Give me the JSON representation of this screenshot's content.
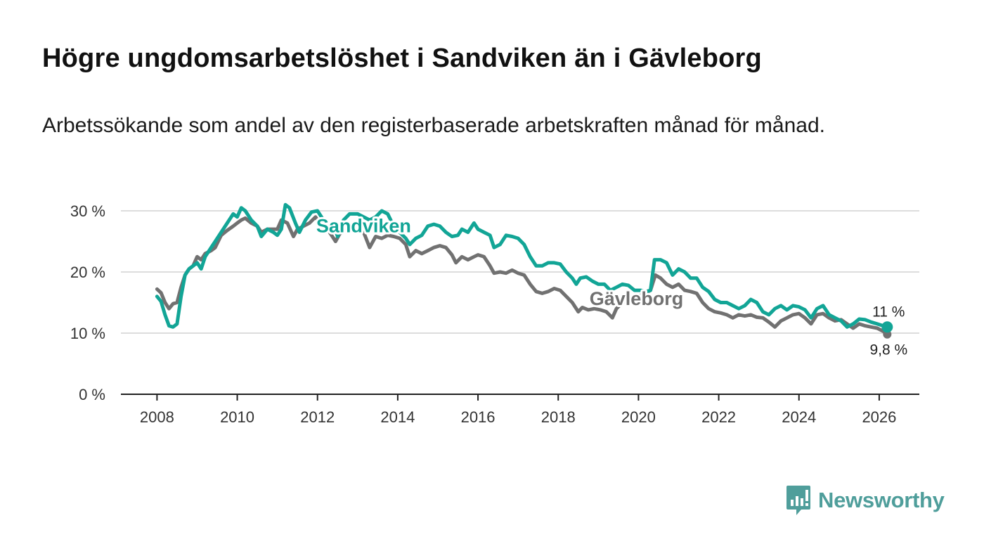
{
  "title": "Högre ungdomsarbetslöshet i Sandviken än i Gävleborg",
  "subtitle": "Arbetssökande som andel av den registerbaserade arbetskraften månad för månad.",
  "logo_text": "Newsworthy",
  "colors": {
    "sandviken": "#12a596",
    "gavleborg": "#717171",
    "grid": "#dddddd",
    "axis": "#222222",
    "logo": "#4f9e9b"
  },
  "chart_data": {
    "type": "line",
    "title": "Högre ungdomsarbetslöshet i Sandviken än i Gävleborg",
    "xlabel": "",
    "ylabel": "",
    "xlim": [
      2007.1,
      2027.0
    ],
    "ylim": [
      0,
      30
    ],
    "y_ticks": [
      0,
      10,
      20,
      30
    ],
    "y_tick_labels": [
      "0 %",
      "10 %",
      "20 %",
      "30 %"
    ],
    "x_ticks": [
      2008,
      2010,
      2012,
      2014,
      2016,
      2018,
      2020,
      2022,
      2024,
      2026
    ],
    "x_tick_labels": [
      "2008",
      "2010",
      "2012",
      "2014",
      "2016",
      "2018",
      "2020",
      "2022",
      "2024",
      "2026"
    ],
    "series": [
      {
        "name": "Gävleborg",
        "label": "Gävleborg",
        "end_label": "9,8 %",
        "points": [
          [
            2008.0,
            17.2
          ],
          [
            2008.1,
            16.6
          ],
          [
            2008.2,
            15.0
          ],
          [
            2008.3,
            14.0
          ],
          [
            2008.4,
            14.8
          ],
          [
            2008.5,
            15.0
          ],
          [
            2008.6,
            17.5
          ],
          [
            2008.7,
            19.5
          ],
          [
            2008.8,
            20.5
          ],
          [
            2008.9,
            21.0
          ],
          [
            2009.0,
            22.5
          ],
          [
            2009.1,
            22.0
          ],
          [
            2009.2,
            23.0
          ],
          [
            2009.35,
            23.5
          ],
          [
            2009.45,
            24.0
          ],
          [
            2009.6,
            26.0
          ],
          [
            2009.75,
            26.8
          ],
          [
            2009.9,
            27.5
          ],
          [
            2010.0,
            28.0
          ],
          [
            2010.1,
            28.5
          ],
          [
            2010.2,
            28.8
          ],
          [
            2010.35,
            28.0
          ],
          [
            2010.5,
            27.5
          ],
          [
            2010.6,
            26.5
          ],
          [
            2010.75,
            27.0
          ],
          [
            2010.9,
            27.0
          ],
          [
            2011.0,
            27.0
          ],
          [
            2011.1,
            28.5
          ],
          [
            2011.25,
            28.0
          ],
          [
            2011.4,
            25.8
          ],
          [
            2011.5,
            27.0
          ],
          [
            2011.65,
            27.5
          ],
          [
            2011.8,
            28.0
          ],
          [
            2011.95,
            29.0
          ],
          [
            2012.1,
            27.5
          ],
          [
            2012.25,
            27.0
          ],
          [
            2012.35,
            26.0
          ],
          [
            2012.45,
            25.0
          ],
          [
            2012.55,
            26.2
          ],
          [
            2012.7,
            27.0
          ],
          [
            2012.85,
            27.5
          ],
          [
            2013.0,
            27.0
          ],
          [
            2013.15,
            26.5
          ],
          [
            2013.3,
            24.0
          ],
          [
            2013.45,
            25.8
          ],
          [
            2013.6,
            25.5
          ],
          [
            2013.75,
            26.0
          ],
          [
            2013.9,
            25.8
          ],
          [
            2014.05,
            25.5
          ],
          [
            2014.2,
            24.5
          ],
          [
            2014.3,
            22.5
          ],
          [
            2014.45,
            23.5
          ],
          [
            2014.6,
            23.0
          ],
          [
            2014.75,
            23.5
          ],
          [
            2014.9,
            24.0
          ],
          [
            2015.05,
            24.3
          ],
          [
            2015.2,
            24.0
          ],
          [
            2015.35,
            22.8
          ],
          [
            2015.45,
            21.5
          ],
          [
            2015.6,
            22.5
          ],
          [
            2015.75,
            22.0
          ],
          [
            2015.9,
            22.5
          ],
          [
            2016.0,
            22.8
          ],
          [
            2016.15,
            22.5
          ],
          [
            2016.3,
            21.0
          ],
          [
            2016.4,
            19.8
          ],
          [
            2016.55,
            20.0
          ],
          [
            2016.7,
            19.8
          ],
          [
            2016.85,
            20.3
          ],
          [
            2017.0,
            19.8
          ],
          [
            2017.15,
            19.5
          ],
          [
            2017.3,
            18.0
          ],
          [
            2017.45,
            16.8
          ],
          [
            2017.6,
            16.5
          ],
          [
            2017.75,
            16.8
          ],
          [
            2017.9,
            17.3
          ],
          [
            2018.05,
            17.0
          ],
          [
            2018.2,
            16.0
          ],
          [
            2018.35,
            15.0
          ],
          [
            2018.5,
            13.5
          ],
          [
            2018.6,
            14.2
          ],
          [
            2018.75,
            13.8
          ],
          [
            2018.9,
            14.0
          ],
          [
            2019.05,
            13.8
          ],
          [
            2019.2,
            13.5
          ],
          [
            2019.35,
            12.5
          ],
          [
            2019.45,
            14.0
          ],
          [
            2019.6,
            15.0
          ],
          [
            2019.75,
            15.5
          ],
          [
            2019.9,
            16.0
          ],
          [
            2020.0,
            16.0
          ],
          [
            2020.15,
            16.5
          ],
          [
            2020.3,
            17.0
          ],
          [
            2020.42,
            19.5
          ],
          [
            2020.55,
            19.0
          ],
          [
            2020.7,
            18.0
          ],
          [
            2020.85,
            17.5
          ],
          [
            2021.0,
            18.0
          ],
          [
            2021.15,
            17.0
          ],
          [
            2021.3,
            16.8
          ],
          [
            2021.45,
            16.5
          ],
          [
            2021.6,
            15.0
          ],
          [
            2021.75,
            14.0
          ],
          [
            2021.9,
            13.5
          ],
          [
            2022.05,
            13.3
          ],
          [
            2022.2,
            13.0
          ],
          [
            2022.35,
            12.5
          ],
          [
            2022.5,
            13.0
          ],
          [
            2022.65,
            12.8
          ],
          [
            2022.8,
            13.0
          ],
          [
            2022.95,
            12.6
          ],
          [
            2023.1,
            12.5
          ],
          [
            2023.25,
            11.8
          ],
          [
            2023.4,
            11.0
          ],
          [
            2023.55,
            12.0
          ],
          [
            2023.7,
            12.5
          ],
          [
            2023.85,
            13.0
          ],
          [
            2024.0,
            13.2
          ],
          [
            2024.15,
            12.5
          ],
          [
            2024.3,
            11.5
          ],
          [
            2024.45,
            13.0
          ],
          [
            2024.6,
            13.2
          ],
          [
            2024.75,
            12.5
          ],
          [
            2024.9,
            12.0
          ],
          [
            2025.05,
            12.2
          ],
          [
            2025.2,
            11.5
          ],
          [
            2025.35,
            10.8
          ],
          [
            2025.5,
            11.5
          ],
          [
            2025.65,
            11.2
          ],
          [
            2025.8,
            11.0
          ],
          [
            2025.95,
            10.8
          ],
          [
            2026.1,
            10.3
          ],
          [
            2026.2,
            9.8
          ]
        ]
      },
      {
        "name": "Sandviken",
        "label": "Sandviken",
        "end_label": "11 %",
        "points": [
          [
            2008.0,
            16.0
          ],
          [
            2008.1,
            15.2
          ],
          [
            2008.2,
            13.0
          ],
          [
            2008.3,
            11.2
          ],
          [
            2008.4,
            11.0
          ],
          [
            2008.5,
            11.5
          ],
          [
            2008.6,
            16.0
          ],
          [
            2008.7,
            19.5
          ],
          [
            2008.8,
            20.5
          ],
          [
            2008.9,
            21.0
          ],
          [
            2009.0,
            21.5
          ],
          [
            2009.1,
            20.5
          ],
          [
            2009.2,
            22.5
          ],
          [
            2009.35,
            24.0
          ],
          [
            2009.45,
            25.0
          ],
          [
            2009.6,
            26.5
          ],
          [
            2009.75,
            28.0
          ],
          [
            2009.9,
            29.5
          ],
          [
            2010.0,
            29.0
          ],
          [
            2010.1,
            30.5
          ],
          [
            2010.2,
            30.0
          ],
          [
            2010.35,
            28.5
          ],
          [
            2010.5,
            27.5
          ],
          [
            2010.6,
            25.8
          ],
          [
            2010.75,
            27.0
          ],
          [
            2010.9,
            26.5
          ],
          [
            2011.0,
            26.0
          ],
          [
            2011.1,
            27.0
          ],
          [
            2011.2,
            31.0
          ],
          [
            2011.3,
            30.5
          ],
          [
            2011.45,
            28.0
          ],
          [
            2011.55,
            26.5
          ],
          [
            2011.7,
            28.5
          ],
          [
            2011.85,
            29.8
          ],
          [
            2012.0,
            30.0
          ],
          [
            2012.1,
            29.0
          ],
          [
            2012.25,
            27.5
          ],
          [
            2012.4,
            28.0
          ],
          [
            2012.5,
            25.8
          ],
          [
            2012.65,
            28.5
          ],
          [
            2012.8,
            29.5
          ],
          [
            2013.0,
            29.5
          ],
          [
            2013.15,
            29.0
          ],
          [
            2013.3,
            28.5
          ],
          [
            2013.45,
            29.0
          ],
          [
            2013.6,
            30.0
          ],
          [
            2013.75,
            29.5
          ],
          [
            2013.9,
            27.5
          ],
          [
            2014.05,
            26.5
          ],
          [
            2014.2,
            25.5
          ],
          [
            2014.3,
            24.5
          ],
          [
            2014.45,
            25.5
          ],
          [
            2014.6,
            26.0
          ],
          [
            2014.75,
            27.5
          ],
          [
            2014.9,
            27.8
          ],
          [
            2015.05,
            27.5
          ],
          [
            2015.2,
            26.5
          ],
          [
            2015.35,
            25.8
          ],
          [
            2015.5,
            26.0
          ],
          [
            2015.6,
            27.0
          ],
          [
            2015.75,
            26.5
          ],
          [
            2015.9,
            28.0
          ],
          [
            2016.0,
            27.0
          ],
          [
            2016.15,
            26.5
          ],
          [
            2016.3,
            26.0
          ],
          [
            2016.4,
            24.0
          ],
          [
            2016.55,
            24.5
          ],
          [
            2016.7,
            26.0
          ],
          [
            2016.85,
            25.8
          ],
          [
            2017.0,
            25.5
          ],
          [
            2017.15,
            24.5
          ],
          [
            2017.3,
            22.5
          ],
          [
            2017.45,
            21.0
          ],
          [
            2017.6,
            21.0
          ],
          [
            2017.75,
            21.5
          ],
          [
            2017.9,
            21.5
          ],
          [
            2018.05,
            21.3
          ],
          [
            2018.2,
            20.0
          ],
          [
            2018.35,
            19.0
          ],
          [
            2018.45,
            18.0
          ],
          [
            2018.55,
            19.0
          ],
          [
            2018.7,
            19.2
          ],
          [
            2018.85,
            18.5
          ],
          [
            2019.0,
            18.0
          ],
          [
            2019.15,
            18.0
          ],
          [
            2019.3,
            17.0
          ],
          [
            2019.45,
            17.5
          ],
          [
            2019.6,
            18.0
          ],
          [
            2019.75,
            17.8
          ],
          [
            2019.9,
            17.0
          ],
          [
            2020.05,
            17.0
          ],
          [
            2020.2,
            16.8
          ],
          [
            2020.3,
            17.0
          ],
          [
            2020.4,
            22.0
          ],
          [
            2020.55,
            22.0
          ],
          [
            2020.7,
            21.5
          ],
          [
            2020.85,
            19.5
          ],
          [
            2021.0,
            20.5
          ],
          [
            2021.15,
            20.0
          ],
          [
            2021.3,
            19.0
          ],
          [
            2021.45,
            19.0
          ],
          [
            2021.6,
            17.5
          ],
          [
            2021.75,
            16.8
          ],
          [
            2021.9,
            15.5
          ],
          [
            2022.05,
            15.0
          ],
          [
            2022.2,
            15.0
          ],
          [
            2022.35,
            14.5
          ],
          [
            2022.5,
            14.0
          ],
          [
            2022.65,
            14.5
          ],
          [
            2022.8,
            15.5
          ],
          [
            2022.95,
            15.0
          ],
          [
            2023.1,
            13.5
          ],
          [
            2023.25,
            13.0
          ],
          [
            2023.4,
            14.0
          ],
          [
            2023.55,
            14.5
          ],
          [
            2023.7,
            13.8
          ],
          [
            2023.85,
            14.5
          ],
          [
            2024.0,
            14.3
          ],
          [
            2024.15,
            13.8
          ],
          [
            2024.3,
            12.5
          ],
          [
            2024.45,
            14.0
          ],
          [
            2024.6,
            14.5
          ],
          [
            2024.75,
            13.0
          ],
          [
            2024.9,
            12.5
          ],
          [
            2025.05,
            12.0
          ],
          [
            2025.2,
            11.0
          ],
          [
            2025.35,
            11.5
          ],
          [
            2025.5,
            12.3
          ],
          [
            2025.65,
            12.2
          ],
          [
            2025.8,
            11.8
          ],
          [
            2025.95,
            11.5
          ],
          [
            2026.1,
            11.2
          ],
          [
            2026.2,
            11.0
          ]
        ]
      }
    ]
  }
}
